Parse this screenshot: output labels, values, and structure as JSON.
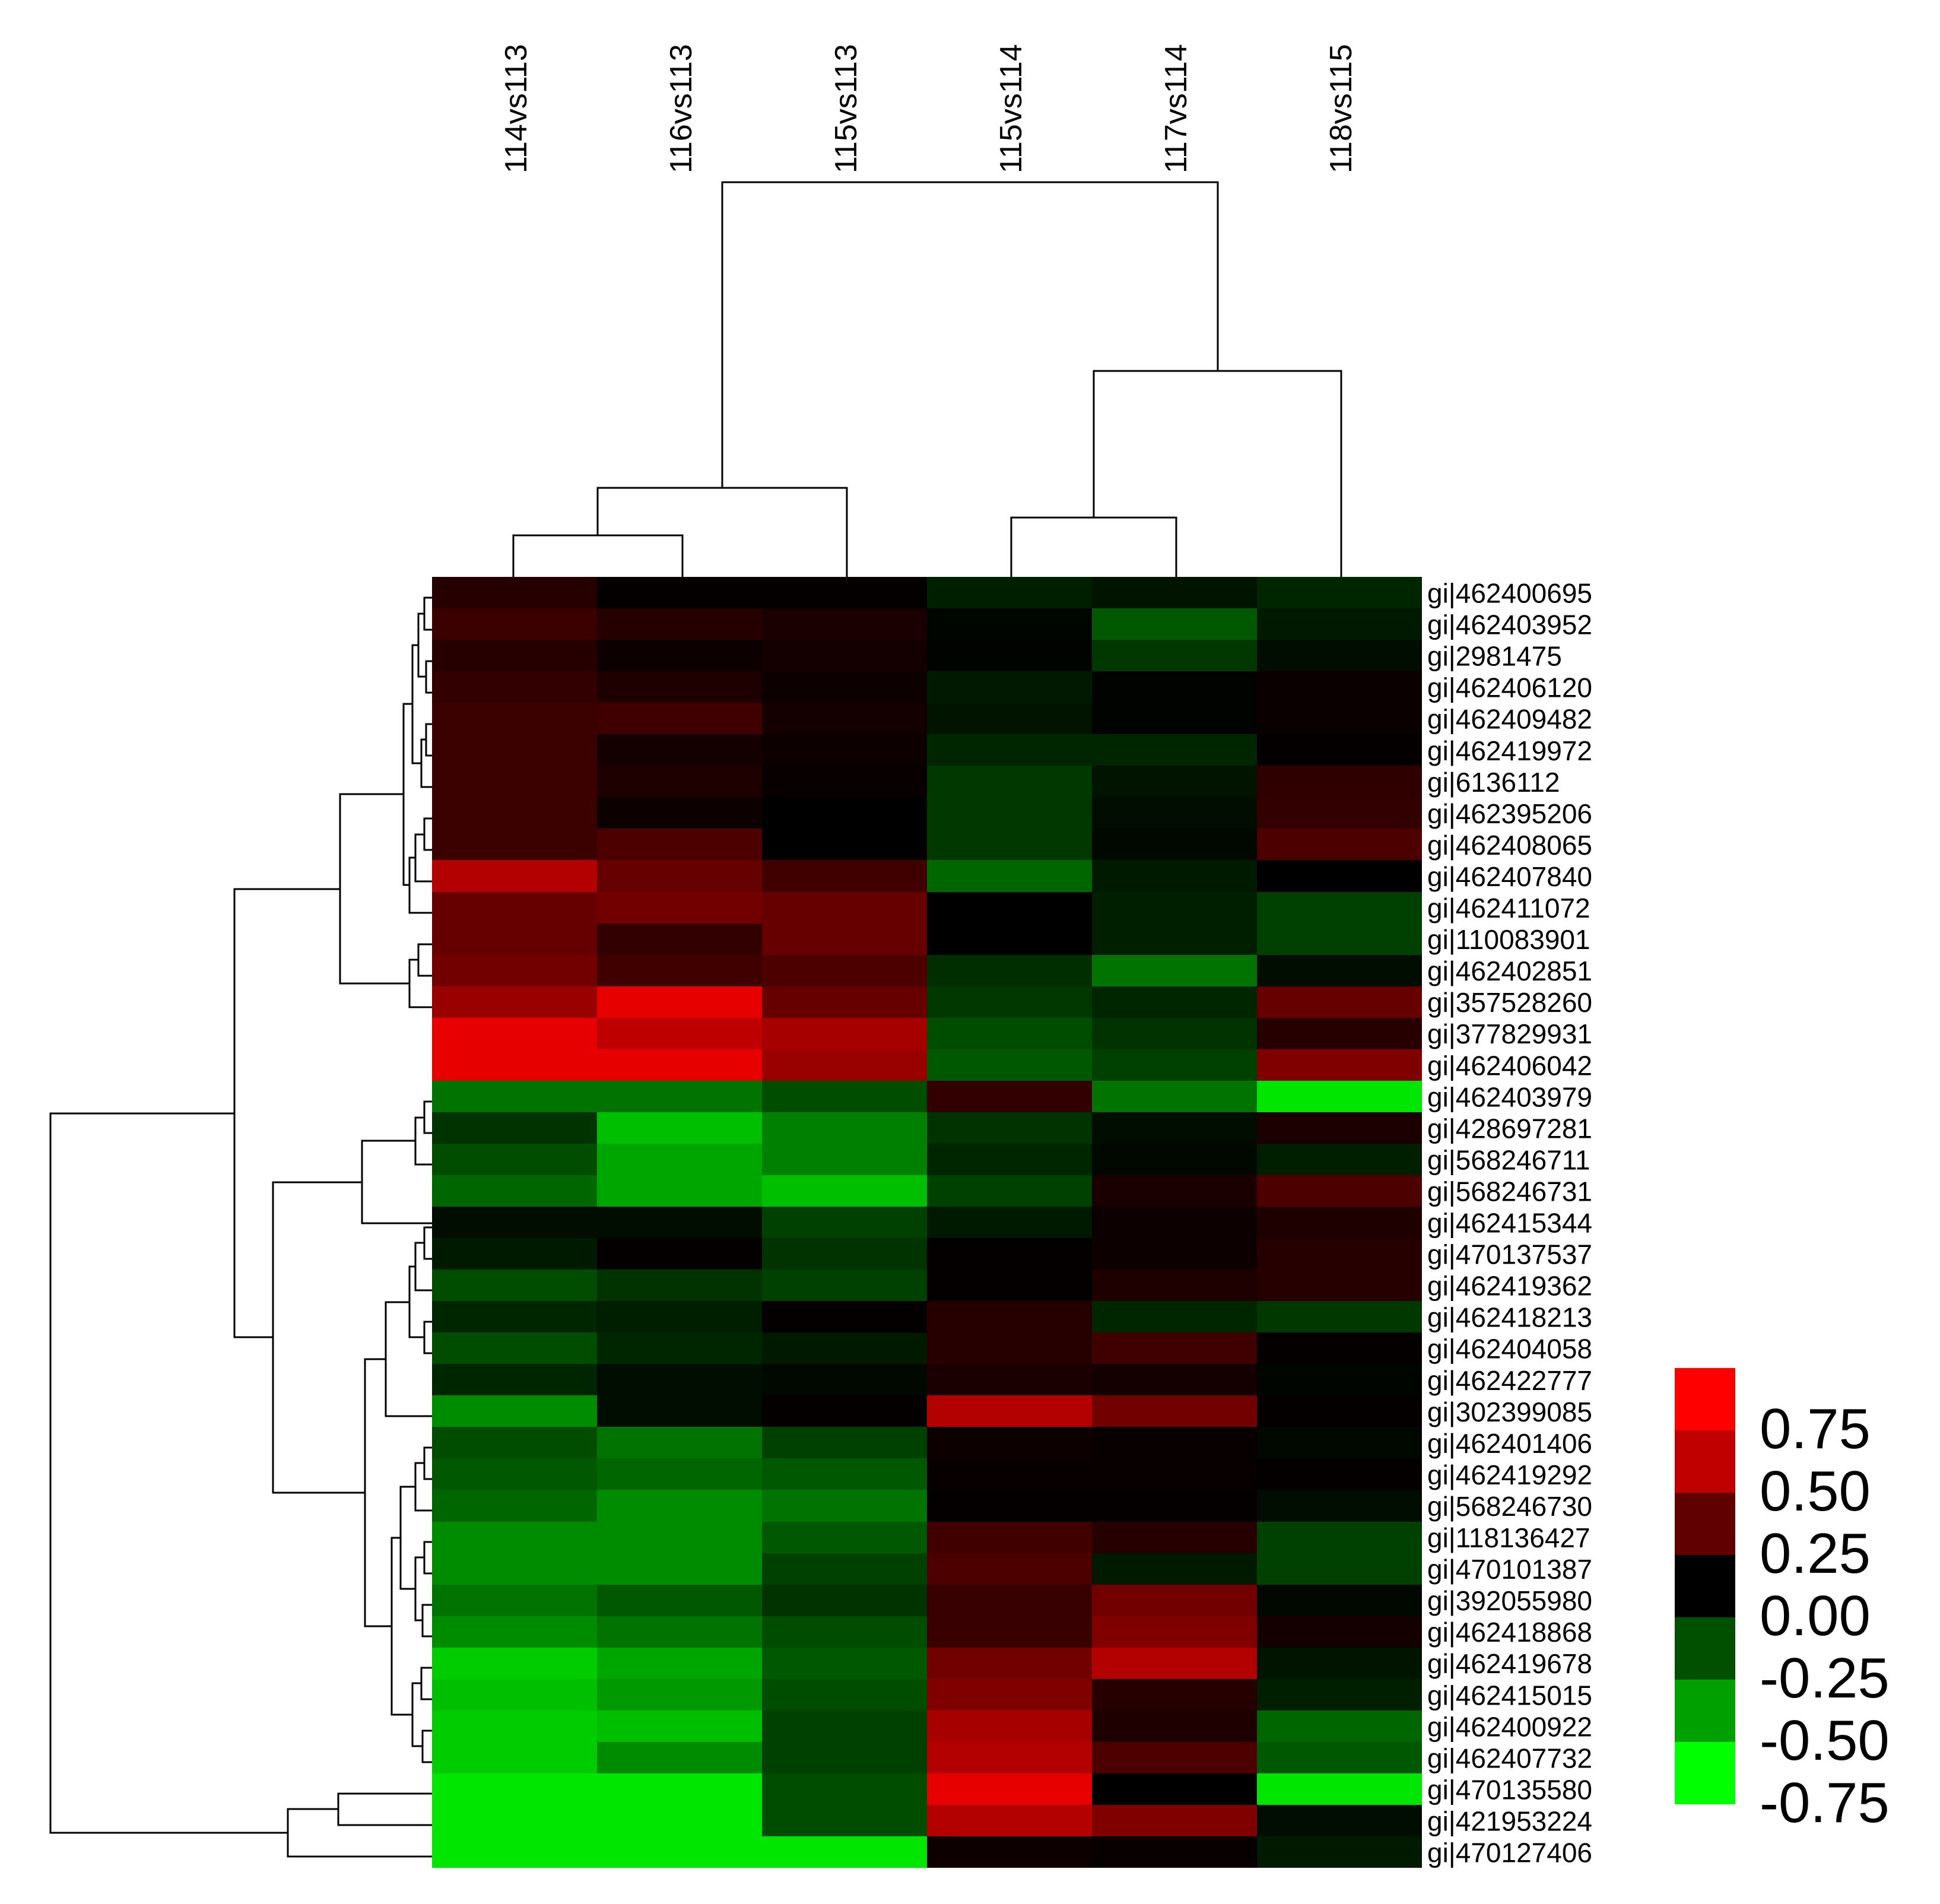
{
  "chart_data": {
    "type": "heatmap",
    "title": "",
    "columns": [
      "114vs113",
      "116vs113",
      "115vs113",
      "115vs114",
      "117vs114",
      "118vs115"
    ],
    "rows": [
      "gi|462400695",
      "gi|462403952",
      "gi|2981475",
      "gi|462406120",
      "gi|462409482",
      "gi|462419972",
      "gi|6136112",
      "gi|462395206",
      "gi|462408065",
      "gi|462407840",
      "gi|462411072",
      "gi|110083901",
      "gi|462402851",
      "gi|357528260",
      "gi|377829931",
      "gi|462406042",
      "gi|462403979",
      "gi|428697281",
      "gi|568246711",
      "gi|568246731",
      "gi|462415344",
      "gi|470137537",
      "gi|462419362",
      "gi|462418213",
      "gi|462404058",
      "gi|462422777",
      "gi|302399085",
      "gi|462401406",
      "gi|462419292",
      "gi|568246730",
      "gi|118136427",
      "gi|470101387",
      "gi|392055980",
      "gi|462418868",
      "gi|462419678",
      "gi|462415015",
      "gi|462400922",
      "gi|462407732",
      "gi|470135580",
      "gi|421953224",
      "gi|470127406"
    ],
    "values": [
      [
        0.15,
        0.02,
        0.02,
        -0.12,
        -0.08,
        -0.15
      ],
      [
        0.23,
        0.15,
        0.1,
        -0.02,
        -0.35,
        -0.1
      ],
      [
        0.15,
        0.05,
        0.08,
        -0.01,
        -0.22,
        -0.05
      ],
      [
        0.2,
        0.12,
        0.05,
        -0.1,
        -0.01,
        0.04
      ],
      [
        0.23,
        0.25,
        0.08,
        -0.08,
        -0.01,
        0.04
      ],
      [
        0.23,
        0.08,
        0.05,
        -0.15,
        -0.15,
        0.02
      ],
      [
        0.23,
        0.12,
        0.03,
        -0.22,
        -0.08,
        0.18
      ],
      [
        0.23,
        0.05,
        0.0,
        -0.22,
        -0.05,
        0.2
      ],
      [
        0.23,
        0.3,
        0.0,
        -0.22,
        -0.03,
        0.3
      ],
      [
        0.7,
        0.4,
        0.25,
        -0.4,
        -0.1,
        0.0
      ],
      [
        0.4,
        0.45,
        0.4,
        0.0,
        -0.12,
        -0.25
      ],
      [
        0.4,
        0.2,
        0.4,
        0.0,
        -0.12,
        -0.25
      ],
      [
        0.45,
        0.25,
        0.3,
        -0.18,
        -0.45,
        -0.05
      ],
      [
        0.6,
        0.9,
        0.4,
        -0.22,
        -0.15,
        0.4
      ],
      [
        0.9,
        0.75,
        0.65,
        -0.3,
        -0.2,
        0.15
      ],
      [
        0.9,
        0.9,
        0.6,
        -0.35,
        -0.25,
        0.5
      ],
      [
        -0.45,
        -0.45,
        -0.3,
        0.2,
        -0.45,
        -0.9
      ],
      [
        -0.2,
        -0.75,
        -0.5,
        -0.2,
        -0.05,
        0.1
      ],
      [
        -0.3,
        -0.65,
        -0.5,
        -0.15,
        -0.03,
        -0.12
      ],
      [
        -0.4,
        -0.65,
        -0.75,
        -0.25,
        0.1,
        0.3
      ],
      [
        -0.05,
        -0.05,
        -0.25,
        -0.1,
        0.05,
        0.12
      ],
      [
        -0.1,
        0.02,
        -0.2,
        0.02,
        0.05,
        0.15
      ],
      [
        -0.3,
        -0.2,
        -0.25,
        0.02,
        0.12,
        0.15
      ],
      [
        -0.15,
        -0.12,
        0.02,
        0.15,
        -0.15,
        -0.22
      ],
      [
        -0.3,
        -0.15,
        -0.1,
        0.15,
        0.25,
        0.02
      ],
      [
        -0.15,
        -0.05,
        -0.03,
        0.1,
        0.08,
        -0.02
      ],
      [
        -0.55,
        -0.05,
        0.02,
        0.7,
        0.45,
        0.02
      ],
      [
        -0.3,
        -0.45,
        -0.25,
        0.05,
        0.03,
        -0.03
      ],
      [
        -0.35,
        -0.4,
        -0.35,
        0.03,
        0.03,
        0.02
      ],
      [
        -0.4,
        -0.55,
        -0.45,
        0.02,
        0.02,
        -0.05
      ],
      [
        -0.55,
        -0.55,
        -0.35,
        0.25,
        0.15,
        -0.25
      ],
      [
        -0.55,
        -0.55,
        -0.25,
        0.3,
        -0.1,
        -0.25
      ],
      [
        -0.45,
        -0.35,
        -0.2,
        0.22,
        0.45,
        -0.03
      ],
      [
        -0.55,
        -0.45,
        -0.3,
        0.22,
        0.5,
        0.08
      ],
      [
        -0.8,
        -0.65,
        -0.35,
        0.45,
        0.7,
        -0.08
      ],
      [
        -0.75,
        -0.6,
        -0.3,
        0.5,
        0.15,
        -0.12
      ],
      [
        -0.8,
        -0.75,
        -0.25,
        0.65,
        0.12,
        -0.4
      ],
      [
        -0.8,
        -0.55,
        -0.25,
        0.7,
        0.3,
        -0.35
      ],
      [
        -0.9,
        -0.9,
        -0.3,
        0.9,
        0.0,
        -0.9
      ],
      [
        -0.9,
        -0.9,
        -0.3,
        0.7,
        0.5,
        -0.05
      ],
      [
        -0.9,
        -0.9,
        -0.9,
        0.05,
        0.03,
        -0.1
      ]
    ],
    "legend": {
      "tick_labels": [
        "0.75",
        "0.50",
        "0.25",
        "0.00",
        "-0.25",
        "-0.50",
        "-0.75"
      ],
      "colors": [
        "#ff0000",
        "#c00000",
        "#600000",
        "#000000",
        "#005000",
        "#00a000",
        "#00ff00"
      ]
    },
    "color_scale": {
      "min": -1.0,
      "max": 1.0,
      "low": "#00ff00",
      "mid": "#000000",
      "high": "#ff0000"
    },
    "column_dendrogram": "((((114vs113,116vs113),115vs113)),((115vs114,117vs114),118vs115))",
    "row_dendrogram": "clustered",
    "legend_position": "bottom-right",
    "grid": false
  }
}
